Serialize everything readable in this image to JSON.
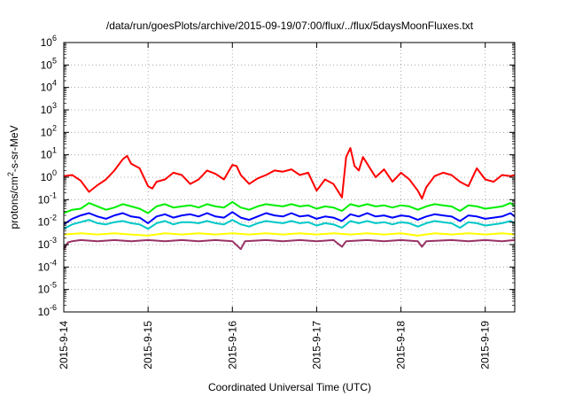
{
  "chart_data": {
    "type": "line",
    "title": "/data/run/goesPlots/archive/2015-09-19/07:00/flux/../flux/5daysMoonFluxes.txt",
    "xlabel": "Coordinated Universal Time (UTC)",
    "ylabel": "protons/cm²-s-sr-MeV",
    "ylabel_parts": [
      "protons/cm",
      "2",
      "-s-sr-MeV"
    ],
    "yscale": "log",
    "ylim": [
      -6,
      6
    ],
    "yticks": [
      {
        "base": "10",
        "exp": "6"
      },
      {
        "base": "10",
        "exp": "5"
      },
      {
        "base": "10",
        "exp": "4"
      },
      {
        "base": "10",
        "exp": "3"
      },
      {
        "base": "10",
        "exp": "2"
      },
      {
        "base": "10",
        "exp": "1"
      },
      {
        "base": "10",
        "exp": "0"
      },
      {
        "base": "10",
        "exp": "-1"
      },
      {
        "base": "10",
        "exp": "-2"
      },
      {
        "base": "10",
        "exp": "-3"
      },
      {
        "base": "10",
        "exp": "-4"
      },
      {
        "base": "10",
        "exp": "-5"
      },
      {
        "base": "10",
        "exp": "-6"
      }
    ],
    "xlim": [
      0,
      5.35
    ],
    "xticks": [
      "2015-9-14",
      "2015-9-15",
      "2015-9-16",
      "2015-9-17",
      "2015-9-18",
      "2015-9-19"
    ],
    "x_unit": "days since 2015-9-14 00:00 UTC",
    "grid": true,
    "series": [
      {
        "color": "#ff0000",
        "log10_flux": [
          [
            0.0,
            0.05
          ],
          [
            0.1,
            0.1
          ],
          [
            0.2,
            -0.15
          ],
          [
            0.3,
            -0.65
          ],
          [
            0.4,
            -0.35
          ],
          [
            0.5,
            -0.1
          ],
          [
            0.6,
            0.3
          ],
          [
            0.7,
            0.8
          ],
          [
            0.75,
            0.95
          ],
          [
            0.8,
            0.6
          ],
          [
            0.9,
            0.4
          ],
          [
            1.0,
            -0.4
          ],
          [
            1.05,
            -0.5
          ],
          [
            1.1,
            -0.2
          ],
          [
            1.2,
            -0.1
          ],
          [
            1.3,
            0.2
          ],
          [
            1.4,
            0.1
          ],
          [
            1.5,
            -0.3
          ],
          [
            1.6,
            -0.1
          ],
          [
            1.7,
            0.3
          ],
          [
            1.8,
            0.15
          ],
          [
            1.9,
            -0.1
          ],
          [
            2.0,
            0.55
          ],
          [
            2.05,
            0.5
          ],
          [
            2.1,
            0.1
          ],
          [
            2.2,
            -0.3
          ],
          [
            2.3,
            -0.05
          ],
          [
            2.4,
            0.1
          ],
          [
            2.5,
            0.3
          ],
          [
            2.6,
            0.25
          ],
          [
            2.7,
            0.35
          ],
          [
            2.8,
            0.1
          ],
          [
            2.9,
            0.2
          ],
          [
            3.0,
            -0.6
          ],
          [
            3.1,
            -0.1
          ],
          [
            3.2,
            -0.3
          ],
          [
            3.3,
            -0.9
          ],
          [
            3.35,
            0.9
          ],
          [
            3.4,
            1.3
          ],
          [
            3.45,
            0.5
          ],
          [
            3.5,
            0.3
          ],
          [
            3.55,
            0.9
          ],
          [
            3.6,
            0.6
          ],
          [
            3.7,
            0.0
          ],
          [
            3.8,
            0.35
          ],
          [
            3.9,
            -0.2
          ],
          [
            4.0,
            0.2
          ],
          [
            4.1,
            -0.1
          ],
          [
            4.2,
            -0.6
          ],
          [
            4.25,
            -0.95
          ],
          [
            4.3,
            -0.45
          ],
          [
            4.4,
            0.05
          ],
          [
            4.5,
            0.2
          ],
          [
            4.6,
            0.1
          ],
          [
            4.7,
            -0.2
          ],
          [
            4.8,
            -0.4
          ],
          [
            4.9,
            0.4
          ],
          [
            5.0,
            -0.1
          ],
          [
            5.1,
            -0.2
          ],
          [
            5.2,
            0.1
          ],
          [
            5.3,
            0.05
          ],
          [
            5.35,
            0.1
          ]
        ]
      },
      {
        "color": "#00ee00",
        "log10_flux": [
          [
            0.0,
            -1.6
          ],
          [
            0.1,
            -1.45
          ],
          [
            0.2,
            -1.4
          ],
          [
            0.3,
            -1.15
          ],
          [
            0.4,
            -1.3
          ],
          [
            0.5,
            -1.45
          ],
          [
            0.6,
            -1.35
          ],
          [
            0.7,
            -1.2
          ],
          [
            0.8,
            -1.3
          ],
          [
            0.9,
            -1.4
          ],
          [
            1.0,
            -1.6
          ],
          [
            1.1,
            -1.3
          ],
          [
            1.2,
            -1.2
          ],
          [
            1.3,
            -1.35
          ],
          [
            1.4,
            -1.3
          ],
          [
            1.5,
            -1.25
          ],
          [
            1.6,
            -1.35
          ],
          [
            1.7,
            -1.2
          ],
          [
            1.8,
            -1.3
          ],
          [
            1.9,
            -1.35
          ],
          [
            2.0,
            -1.1
          ],
          [
            2.1,
            -1.35
          ],
          [
            2.2,
            -1.45
          ],
          [
            2.3,
            -1.3
          ],
          [
            2.4,
            -1.2
          ],
          [
            2.5,
            -1.25
          ],
          [
            2.6,
            -1.3
          ],
          [
            2.7,
            -1.2
          ],
          [
            2.8,
            -1.3
          ],
          [
            2.9,
            -1.25
          ],
          [
            3.0,
            -1.4
          ],
          [
            3.1,
            -1.3
          ],
          [
            3.2,
            -1.35
          ],
          [
            3.3,
            -1.5
          ],
          [
            3.4,
            -1.2
          ],
          [
            3.5,
            -1.3
          ],
          [
            3.6,
            -1.2
          ],
          [
            3.7,
            -1.3
          ],
          [
            3.8,
            -1.25
          ],
          [
            3.9,
            -1.35
          ],
          [
            4.0,
            -1.25
          ],
          [
            4.1,
            -1.3
          ],
          [
            4.2,
            -1.45
          ],
          [
            4.3,
            -1.3
          ],
          [
            4.4,
            -1.2
          ],
          [
            4.5,
            -1.25
          ],
          [
            4.6,
            -1.3
          ],
          [
            4.7,
            -1.5
          ],
          [
            4.8,
            -1.25
          ],
          [
            4.9,
            -1.3
          ],
          [
            5.0,
            -1.4
          ],
          [
            5.1,
            -1.35
          ],
          [
            5.2,
            -1.3
          ],
          [
            5.3,
            -1.15
          ],
          [
            5.35,
            -1.3
          ]
        ]
      },
      {
        "color": "#0000ff",
        "log10_flux": [
          [
            0.0,
            -2.1
          ],
          [
            0.1,
            -1.85
          ],
          [
            0.2,
            -1.7
          ],
          [
            0.3,
            -1.6
          ],
          [
            0.4,
            -1.75
          ],
          [
            0.5,
            -1.85
          ],
          [
            0.6,
            -1.7
          ],
          [
            0.7,
            -1.6
          ],
          [
            0.8,
            -1.75
          ],
          [
            0.9,
            -1.8
          ],
          [
            1.0,
            -2.05
          ],
          [
            1.1,
            -1.75
          ],
          [
            1.2,
            -1.65
          ],
          [
            1.3,
            -1.8
          ],
          [
            1.4,
            -1.7
          ],
          [
            1.5,
            -1.65
          ],
          [
            1.6,
            -1.75
          ],
          [
            1.7,
            -1.6
          ],
          [
            1.8,
            -1.75
          ],
          [
            1.9,
            -1.8
          ],
          [
            2.0,
            -1.55
          ],
          [
            2.1,
            -1.8
          ],
          [
            2.2,
            -1.9
          ],
          [
            2.3,
            -1.75
          ],
          [
            2.4,
            -1.6
          ],
          [
            2.5,
            -1.7
          ],
          [
            2.6,
            -1.75
          ],
          [
            2.7,
            -1.6
          ],
          [
            2.8,
            -1.75
          ],
          [
            2.9,
            -1.7
          ],
          [
            3.0,
            -1.85
          ],
          [
            3.1,
            -1.75
          ],
          [
            3.2,
            -1.8
          ],
          [
            3.3,
            -1.95
          ],
          [
            3.4,
            -1.65
          ],
          [
            3.5,
            -1.75
          ],
          [
            3.6,
            -1.6
          ],
          [
            3.7,
            -1.75
          ],
          [
            3.8,
            -1.7
          ],
          [
            3.9,
            -1.8
          ],
          [
            4.0,
            -1.7
          ],
          [
            4.1,
            -1.75
          ],
          [
            4.2,
            -1.9
          ],
          [
            4.3,
            -1.75
          ],
          [
            4.4,
            -1.65
          ],
          [
            4.5,
            -1.7
          ],
          [
            4.6,
            -1.75
          ],
          [
            4.7,
            -1.95
          ],
          [
            4.8,
            -1.7
          ],
          [
            4.9,
            -1.75
          ],
          [
            5.0,
            -1.85
          ],
          [
            5.1,
            -1.8
          ],
          [
            5.2,
            -1.75
          ],
          [
            5.3,
            -1.6
          ],
          [
            5.35,
            -1.75
          ]
        ]
      },
      {
        "color": "#00c8c8",
        "log10_flux": [
          [
            0.0,
            -2.3
          ],
          [
            0.1,
            -2.1
          ],
          [
            0.2,
            -2.0
          ],
          [
            0.3,
            -1.9
          ],
          [
            0.4,
            -2.05
          ],
          [
            0.5,
            -2.1
          ],
          [
            0.6,
            -2.0
          ],
          [
            0.7,
            -1.95
          ],
          [
            0.8,
            -2.05
          ],
          [
            0.9,
            -2.1
          ],
          [
            1.0,
            -2.3
          ],
          [
            1.1,
            -2.05
          ],
          [
            1.2,
            -1.95
          ],
          [
            1.3,
            -2.1
          ],
          [
            1.4,
            -2.0
          ],
          [
            1.5,
            -2.0
          ],
          [
            1.6,
            -2.05
          ],
          [
            1.7,
            -1.95
          ],
          [
            1.8,
            -2.05
          ],
          [
            1.9,
            -2.1
          ],
          [
            2.0,
            -1.9
          ],
          [
            2.1,
            -2.1
          ],
          [
            2.2,
            -2.2
          ],
          [
            2.3,
            -2.05
          ],
          [
            2.4,
            -1.95
          ],
          [
            2.5,
            -2.0
          ],
          [
            2.6,
            -2.05
          ],
          [
            2.7,
            -1.95
          ],
          [
            2.8,
            -2.05
          ],
          [
            2.9,
            -2.0
          ],
          [
            3.0,
            -2.15
          ],
          [
            3.1,
            -2.05
          ],
          [
            3.2,
            -2.1
          ],
          [
            3.3,
            -2.25
          ],
          [
            3.4,
            -1.95
          ],
          [
            3.5,
            -2.05
          ],
          [
            3.6,
            -1.95
          ],
          [
            3.7,
            -2.05
          ],
          [
            3.8,
            -2.0
          ],
          [
            3.9,
            -2.1
          ],
          [
            4.0,
            -2.0
          ],
          [
            4.1,
            -2.05
          ],
          [
            4.2,
            -2.2
          ],
          [
            4.3,
            -2.05
          ],
          [
            4.4,
            -1.95
          ],
          [
            4.5,
            -2.0
          ],
          [
            4.6,
            -2.05
          ],
          [
            4.7,
            -2.25
          ],
          [
            4.8,
            -2.0
          ],
          [
            4.9,
            -2.05
          ],
          [
            5.0,
            -2.15
          ],
          [
            5.1,
            -2.1
          ],
          [
            5.2,
            -2.05
          ],
          [
            5.3,
            -1.95
          ],
          [
            5.35,
            -2.05
          ]
        ]
      },
      {
        "color": "#ffff00",
        "log10_flux": [
          [
            0.0,
            -2.55
          ],
          [
            0.2,
            -2.5
          ],
          [
            0.4,
            -2.55
          ],
          [
            0.6,
            -2.5
          ],
          [
            0.8,
            -2.55
          ],
          [
            1.0,
            -2.6
          ],
          [
            1.2,
            -2.5
          ],
          [
            1.4,
            -2.55
          ],
          [
            1.6,
            -2.5
          ],
          [
            1.8,
            -2.55
          ],
          [
            2.0,
            -2.5
          ],
          [
            2.2,
            -2.55
          ],
          [
            2.4,
            -2.5
          ],
          [
            2.6,
            -2.55
          ],
          [
            2.8,
            -2.5
          ],
          [
            3.0,
            -2.55
          ],
          [
            3.2,
            -2.5
          ],
          [
            3.4,
            -2.55
          ],
          [
            3.6,
            -2.5
          ],
          [
            3.8,
            -2.55
          ],
          [
            4.0,
            -2.5
          ],
          [
            4.2,
            -2.6
          ],
          [
            4.4,
            -2.5
          ],
          [
            4.6,
            -2.55
          ],
          [
            4.8,
            -2.5
          ],
          [
            5.0,
            -2.55
          ],
          [
            5.2,
            -2.5
          ],
          [
            5.35,
            -2.55
          ]
        ]
      },
      {
        "color": "#993366",
        "log10_flux": [
          [
            0.0,
            -3.2
          ],
          [
            0.05,
            -2.9
          ],
          [
            0.1,
            -2.85
          ],
          [
            0.2,
            -2.8
          ],
          [
            0.4,
            -2.85
          ],
          [
            0.6,
            -2.8
          ],
          [
            0.8,
            -2.85
          ],
          [
            1.0,
            -2.8
          ],
          [
            1.2,
            -2.85
          ],
          [
            1.4,
            -2.8
          ],
          [
            1.6,
            -2.85
          ],
          [
            1.8,
            -2.8
          ],
          [
            2.0,
            -2.85
          ],
          [
            2.1,
            -3.2
          ],
          [
            2.15,
            -2.85
          ],
          [
            2.4,
            -2.8
          ],
          [
            2.6,
            -2.85
          ],
          [
            2.8,
            -2.8
          ],
          [
            3.0,
            -2.85
          ],
          [
            3.2,
            -2.8
          ],
          [
            3.3,
            -3.1
          ],
          [
            3.35,
            -2.85
          ],
          [
            3.6,
            -2.8
          ],
          [
            3.8,
            -2.85
          ],
          [
            4.0,
            -2.8
          ],
          [
            4.2,
            -2.85
          ],
          [
            4.25,
            -3.1
          ],
          [
            4.3,
            -2.85
          ],
          [
            4.6,
            -2.8
          ],
          [
            4.8,
            -2.85
          ],
          [
            5.0,
            -2.8
          ],
          [
            5.2,
            -2.85
          ],
          [
            5.35,
            -2.8
          ]
        ]
      }
    ]
  }
}
